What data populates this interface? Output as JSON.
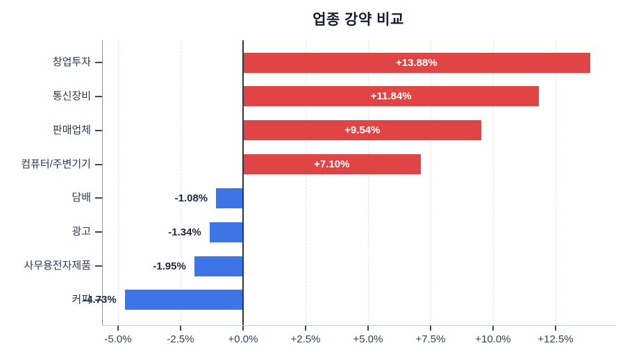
{
  "title": "업종 강약 비교",
  "chart_data": {
    "type": "bar",
    "orientation": "horizontal",
    "title": "업종 강약 비교",
    "categories": [
      "창업투자",
      "통신장비",
      "판매업체",
      "컴퓨터/주변기기",
      "담배",
      "광고",
      "사무용전자제품",
      "커피"
    ],
    "values": [
      13.88,
      11.84,
      9.54,
      7.1,
      -1.08,
      -1.34,
      -1.95,
      -4.73
    ],
    "bar_labels": [
      "+13.88%",
      "+11.84%",
      "+9.54%",
      "+7.10%",
      "-1.08%",
      "-1.34%",
      "-1.95%",
      "-4.73%"
    ],
    "x_ticks": {
      "values": [
        -5.0,
        -2.5,
        0.0,
        2.5,
        5.0,
        7.5,
        10.0,
        12.5
      ],
      "labels": [
        "-5.0%",
        "-2.5%",
        "+0.0%",
        "+2.5%",
        "+5.0%",
        "+7.5%",
        "+10.0%",
        "+12.5%"
      ]
    },
    "xlim": [
      -5.65,
      14.9
    ],
    "grid": "vertical-dashed",
    "legend": "none",
    "colors": {
      "positive_bar": "#e14444",
      "negative_bar": "#3d74e6",
      "background": "#ffffff",
      "title_text": "#131c31",
      "axis_text": "#333f55",
      "category_text": "#2c3850",
      "bar_label_positive": "#ffffff",
      "bar_label_negative": "#202b40",
      "gridline": "#e4e6ea",
      "zero_line": "#2b3347",
      "left_spine": "#8a93a4",
      "bottom_spine": "#c9cdd4",
      "tick_mark": "#3a465c"
    }
  }
}
